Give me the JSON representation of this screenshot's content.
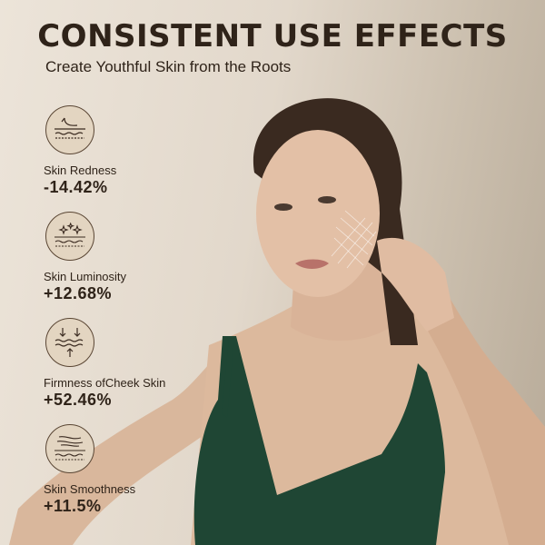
{
  "header": {
    "title": "CONSISTENT USE EFFECTS",
    "subtitle": "Create Youthful Skin from the Roots"
  },
  "stats": [
    {
      "icon": "skin-redness-icon",
      "label": "Skin Redness",
      "value": "-14.42%"
    },
    {
      "icon": "skin-luminosity-icon",
      "label": "Skin Luminosity",
      "value": "+12.68%"
    },
    {
      "icon": "skin-firmness-icon",
      "label": "Firmness ofCheek Skin",
      "value": "+52.46%"
    },
    {
      "icon": "skin-smoothness-icon",
      "label": "Skin Smoothness",
      "value": "+11.5%"
    }
  ],
  "colors": {
    "text": "#2f2319",
    "dress": "#1f4634",
    "icon_bg": "#e3d5c1"
  }
}
